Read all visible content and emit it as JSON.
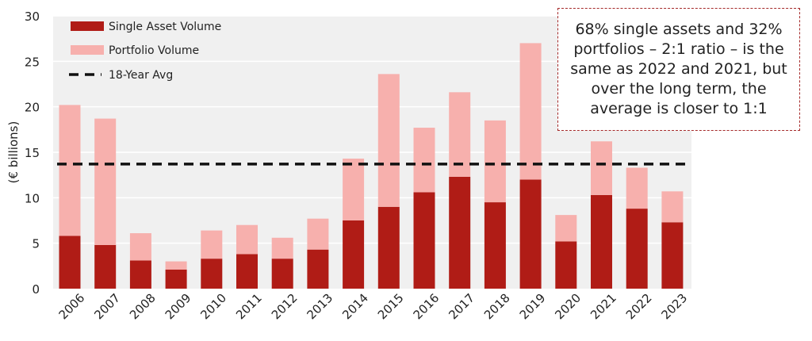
{
  "chart_data": {
    "type": "bar",
    "stacked": true,
    "categories": [
      "2006",
      "2007",
      "2008",
      "2009",
      "2010",
      "2011",
      "2012",
      "2013",
      "2014",
      "2015",
      "2016",
      "2017",
      "2018",
      "2019",
      "2020",
      "2021",
      "2022",
      "2023"
    ],
    "series": [
      {
        "name": "Single Asset Volume",
        "color": "#b01c16",
        "values": [
          5.8,
          4.8,
          3.1,
          2.1,
          3.3,
          3.8,
          3.3,
          4.3,
          7.5,
          9.0,
          10.6,
          12.3,
          9.5,
          12.0,
          5.2,
          10.3,
          8.8,
          7.3
        ]
      },
      {
        "name": "Portfolio Volume",
        "color": "#f7b0ad",
        "values": [
          14.4,
          13.9,
          3.0,
          0.9,
          3.1,
          3.2,
          2.3,
          3.4,
          6.8,
          14.6,
          7.1,
          9.3,
          9.0,
          15.0,
          2.9,
          5.9,
          4.5,
          3.4
        ]
      }
    ],
    "avg_line": {
      "name": "18-Year Avg",
      "value": 13.7
    },
    "ylabel": "(€ billions)",
    "ylim": [
      0,
      30
    ],
    "yticks": [
      "0",
      "5",
      "10",
      "15",
      "20",
      "25",
      "30"
    ],
    "legend_position": "top-left",
    "grid": true,
    "annotation": "68% single assets and 32% portfolios – 2:1 ratio – is the same as 2022 and 2021, but over the long term, the average is closer to 1:1"
  }
}
